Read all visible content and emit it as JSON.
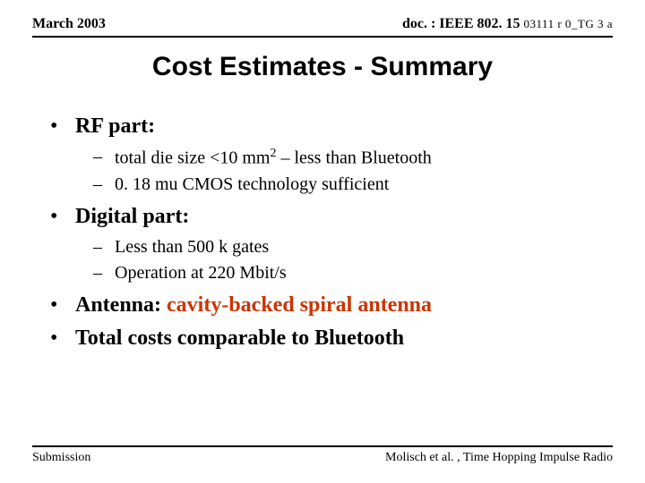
{
  "header": {
    "date": "March 2003",
    "doc_prefix": "doc. : IEEE 802. 15 ",
    "doc_suffix": "03111 r 0_TG 3 a"
  },
  "title": "Cost Estimates - Summary",
  "bullets": {
    "b1": {
      "label": "RF part:"
    },
    "b1a_pre": "total die size <10 mm",
    "b1a_sup": "2",
    "b1a_post": " – less than Bluetooth",
    "b1b": "0. 18 mu CMOS technology sufficient",
    "b2": {
      "label": "Digital part:"
    },
    "b2a": "Less than 500 k gates",
    "b2b": "Operation at 220 Mbit/s",
    "b3_label_pre": "Antenna: ",
    "b3_label_em": "cavity-backed spiral antenna",
    "b4": "Total costs comparable to Bluetooth"
  },
  "footer": {
    "left": "Submission",
    "right": "Molisch et al. , Time Hopping Impulse Radio"
  },
  "colors": {
    "emphasis": "#cc3300",
    "text": "#000000",
    "background": "#ffffff"
  },
  "fonts": {
    "title": "Arial",
    "body": "Times New Roman",
    "title_size_pt": 30,
    "bullet1_size_pt": 24,
    "bullet2_size_pt": 20,
    "header_size_pt": 16,
    "footer_size_pt": 14
  }
}
